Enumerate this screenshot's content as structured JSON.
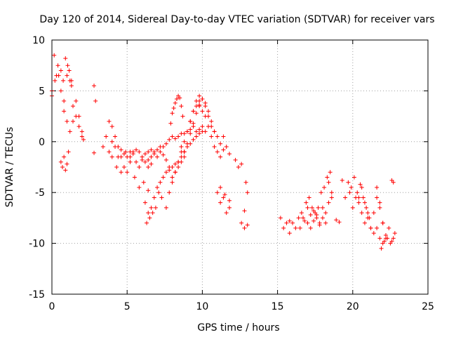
{
  "chart_data": {
    "type": "scatter",
    "title": "Day 120 of 2014, Sidereal Day-to-day VTEC variation (SDTVAR) for receiver vars",
    "xlabel": "GPS time / hours",
    "ylabel": "SDTVAR / TECUs",
    "xlim": [
      0,
      25
    ],
    "ylim": [
      -15,
      10
    ],
    "xticks": [
      0,
      5,
      10,
      15,
      20,
      25
    ],
    "yticks": [
      -15,
      -10,
      -5,
      0,
      5,
      10
    ],
    "grid": true,
    "marker": "+",
    "color": "#ff0000",
    "series": [
      {
        "name": "SDTVAR",
        "segments": [
          {
            "x": [
              0.0,
              0.15,
              0.3,
              0.45,
              0.6,
              0.75,
              0.9,
              1.05,
              1.2,
              1.3
            ],
            "y": [
              5.0,
              8.5,
              6.5,
              6.5,
              7.0,
              6.0,
              8.2,
              7.5,
              6.0,
              5.5
            ]
          },
          {
            "x": [
              0.0,
              0.2,
              0.4,
              0.6,
              0.8,
              1.0,
              1.15,
              1.3
            ],
            "y": [
              4.5,
              6.0,
              7.5,
              5.0,
              4.0,
              6.5,
              7.0,
              6.0
            ]
          },
          {
            "x": [
              0.6,
              0.7,
              0.8,
              0.9,
              1.0,
              1.1
            ],
            "y": [
              -2.0,
              -2.5,
              -1.5,
              -2.8,
              -2.2,
              -1.0
            ]
          },
          {
            "x": [
              0.8,
              1.0,
              1.2,
              1.4,
              1.6,
              1.8,
              2.0
            ],
            "y": [
              3.0,
              2.0,
              1.0,
              3.5,
              2.5,
              1.5,
              0.5
            ]
          },
          {
            "x": [
              1.4,
              1.6,
              1.8,
              2.0,
              2.1
            ],
            "y": [
              2.0,
              4.0,
              2.5,
              1.0,
              0.2
            ]
          },
          {
            "x": [
              2.8,
              2.9
            ],
            "y": [
              5.5,
              4.0
            ]
          },
          {
            "x": [
              2.8
            ],
            "y": [
              -1.1
            ]
          },
          {
            "x": [
              3.4,
              3.6,
              3.8,
              4.0,
              4.2,
              4.4,
              4.6,
              4.8,
              5.0,
              5.2,
              5.4,
              5.6,
              5.8,
              6.0,
              6.2,
              6.4,
              6.6,
              6.8,
              7.0,
              7.2,
              7.4,
              7.6,
              7.8,
              8.0,
              8.2,
              8.4,
              8.6,
              8.8,
              9.0,
              9.2,
              9.4,
              9.6,
              9.8,
              10.0,
              10.2
            ],
            "y": [
              -0.5,
              0.5,
              -1.0,
              0.0,
              -0.5,
              -1.5,
              -0.8,
              -1.2,
              -1.5,
              -1.0,
              -1.2,
              -0.8,
              -1.0,
              -1.5,
              -1.2,
              -1.8,
              -1.5,
              -1.0,
              -0.8,
              -0.5,
              -0.5,
              -0.2,
              0.2,
              0.5,
              0.3,
              0.5,
              0.8,
              0.8,
              1.0,
              1.2,
              1.5,
              1.0,
              1.2,
              1.5,
              1.0
            ]
          },
          {
            "x": [
              3.8,
              4.0,
              4.2,
              4.4,
              4.6,
              4.8,
              5.0,
              5.2,
              5.4,
              5.6,
              5.8,
              6.0,
              6.2,
              6.4,
              6.6
            ],
            "y": [
              2.0,
              1.5,
              0.5,
              -0.5,
              -1.5,
              -2.5,
              -3.0,
              -1.5,
              -1.0,
              -2.0,
              -2.5,
              -1.8,
              -2.0,
              -2.5,
              -2.2
            ]
          },
          {
            "x": [
              4.0,
              4.3,
              4.6,
              4.9,
              5.2,
              5.5,
              5.8,
              6.1,
              6.4
            ],
            "y": [
              -1.5,
              -2.5,
              -3.0,
              -1.0,
              -2.0,
              -3.5,
              -4.5,
              -4.0,
              -4.8
            ]
          },
          {
            "x": [
              6.4,
              6.6,
              6.8,
              7.0,
              7.2,
              7.4,
              7.6,
              7.8,
              8.0,
              8.2,
              8.4,
              8.6,
              8.8
            ],
            "y": [
              -1.0,
              -0.8,
              -1.2,
              -1.5,
              -1.0,
              -1.3,
              -1.8,
              -2.5,
              -3.5,
              -3.0,
              -2.5,
              -2.0,
              -1.5
            ]
          },
          {
            "x": [
              6.2,
              6.4,
              6.6,
              6.8,
              7.0,
              7.2,
              7.4,
              7.6,
              7.8,
              8.0,
              8.2,
              8.4,
              8.6,
              8.8,
              9.0,
              9.2,
              9.4,
              9.6,
              9.8,
              10.0
            ],
            "y": [
              -6.0,
              -7.0,
              -6.5,
              -5.5,
              -4.5,
              -4.0,
              -3.5,
              -3.0,
              -2.8,
              -2.5,
              -2.2,
              -2.0,
              -1.5,
              -1.0,
              -0.5,
              -0.2,
              0.2,
              0.5,
              0.8,
              1.0
            ]
          },
          {
            "x": [
              6.3,
              6.5,
              6.7,
              6.9,
              7.1,
              7.3
            ],
            "y": [
              -8.0,
              -7.5,
              -7.0,
              -6.5,
              -5.0,
              -5.5
            ]
          },
          {
            "x": [
              7.6,
              7.8,
              8.0,
              8.2,
              8.4,
              8.6,
              8.8,
              9.0,
              9.2,
              9.4,
              9.6,
              9.8
            ],
            "y": [
              -6.5,
              -5.0,
              -4.0,
              -3.0,
              -2.0,
              -1.0,
              0.0,
              1.0,
              2.0,
              3.0,
              3.5,
              4.0
            ]
          },
          {
            "x": [
              7.9,
              8.0,
              8.1,
              8.2,
              8.3,
              8.4,
              8.5,
              8.6,
              8.7
            ],
            "y": [
              1.8,
              2.8,
              3.3,
              3.8,
              4.2,
              4.5,
              4.3,
              3.5,
              2.5
            ]
          },
          {
            "x": [
              8.6,
              8.8,
              9.0,
              9.2,
              9.4,
              9.6,
              9.8,
              10.0,
              10.2,
              10.4,
              10.6,
              10.8
            ],
            "y": [
              -0.5,
              -1.0,
              -0.2,
              0.8,
              1.8,
              2.8,
              3.6,
              4.2,
              3.8,
              3.0,
              2.0,
              1.0
            ]
          },
          {
            "x": [
              9.2,
              9.4,
              9.6,
              9.8,
              10.0,
              10.2,
              10.4,
              10.6,
              10.8,
              11.0,
              11.2,
              11.4
            ],
            "y": [
              2.0,
              3.0,
              4.0,
              4.5,
              4.2,
              3.5,
              2.5,
              1.5,
              1.0,
              0.5,
              -0.2,
              -0.8
            ]
          },
          {
            "x": [
              9.8,
              10.0,
              10.2,
              10.4,
              10.6,
              10.8,
              11.0,
              11.2,
              11.4,
              11.6,
              11.8
            ],
            "y": [
              3.5,
              3.0,
              2.5,
              1.5,
              0.5,
              -0.5,
              -1.0,
              -1.5,
              0.5,
              -0.5,
              -1.2
            ]
          },
          {
            "x": [
              11.0,
              11.2,
              11.4,
              11.6,
              11.8
            ],
            "y": [
              -5.0,
              -6.0,
              -5.5,
              -7.0,
              -6.5
            ]
          },
          {
            "x": [
              11.2,
              11.5,
              11.8
            ],
            "y": [
              -4.5,
              -5.2,
              -5.8
            ]
          },
          {
            "x": [
              12.2,
              12.4,
              12.6
            ],
            "y": [
              -1.8,
              -2.5,
              -2.2
            ]
          },
          {
            "x": [
              12.6,
              12.8,
              13.0
            ],
            "y": [
              -8.0,
              -8.5,
              -8.2
            ]
          },
          {
            "x": [
              12.9,
              13.0
            ],
            "y": [
              -4.0,
              -5.0
            ]
          },
          {
            "x": [
              12.8
            ],
            "y": [
              -6.8
            ]
          },
          {
            "x": [
              15.2,
              15.4,
              15.6,
              15.8
            ],
            "y": [
              -7.5,
              -8.5,
              -8.0,
              -7.8
            ]
          },
          {
            "x": [
              15.8,
              16.0,
              16.2,
              16.4,
              16.6,
              16.8,
              17.0,
              17.2,
              17.4,
              17.6,
              17.8,
              18.0,
              18.2,
              18.4,
              18.6
            ],
            "y": [
              -9.0,
              -8.0,
              -8.5,
              -7.5,
              -7.0,
              -7.8,
              -6.5,
              -7.2,
              -6.8,
              -7.5,
              -8.0,
              -6.5,
              -7.0,
              -6.0,
              -5.5
            ]
          },
          {
            "x": [
              16.5,
              16.7,
              16.9,
              17.1,
              17.3,
              17.5,
              17.7,
              17.9,
              18.1,
              18.3,
              18.5
            ],
            "y": [
              -8.5,
              -7.5,
              -6.0,
              -5.5,
              -6.5,
              -7.0,
              -6.5,
              -5.0,
              -4.5,
              -3.5,
              -3.0
            ]
          },
          {
            "x": [
              17.0,
              17.2,
              17.4,
              17.6,
              17.8,
              18.0,
              18.2
            ],
            "y": [
              -8.0,
              -8.5,
              -7.8,
              -7.2,
              -8.2,
              -7.5,
              -8.0
            ]
          },
          {
            "x": [
              18.4,
              18.6
            ],
            "y": [
              -4.0,
              -5.0
            ]
          },
          {
            "x": [
              18.9,
              19.1
            ],
            "y": [
              -7.7,
              -7.9
            ]
          },
          {
            "x": [
              19.3,
              19.5,
              19.7,
              19.9,
              20.1,
              20.3,
              20.5,
              20.7,
              20.9,
              21.1
            ],
            "y": [
              -3.8,
              -5.5,
              -4.0,
              -4.5,
              -3.5,
              -5.0,
              -4.2,
              -5.5,
              -6.5,
              -7.5
            ]
          },
          {
            "x": [
              19.8,
              20.0,
              20.2,
              20.4,
              20.6,
              20.8,
              21.0,
              21.2,
              21.4,
              21.6,
              21.8,
              22.0,
              22.2
            ],
            "y": [
              -5.0,
              -6.5,
              -5.5,
              -6.0,
              -7.0,
              -8.0,
              -7.5,
              -8.5,
              -9.0,
              -8.5,
              -9.5,
              -10.0,
              -9.2
            ]
          },
          {
            "x": [
              20.4,
              20.6,
              20.8,
              21.0,
              21.2,
              21.4,
              21.6,
              21.8,
              22.0
            ],
            "y": [
              -5.5,
              -4.5,
              -6.0,
              -7.0,
              -8.5,
              -7.0,
              -5.5,
              -6.5,
              -8.0
            ]
          },
          {
            "x": [
              21.6,
              21.8,
              22.0,
              22.2,
              22.4,
              22.6,
              22.8
            ],
            "y": [
              -4.5,
              -6.0,
              -8.0,
              -9.5,
              -8.5,
              -9.8,
              -9.0
            ]
          },
          {
            "x": [
              21.9,
              22.1,
              22.3,
              22.5,
              22.7
            ],
            "y": [
              -10.5,
              -9.8,
              -9.5,
              -10.0,
              -9.5
            ]
          },
          {
            "x": [
              22.6,
              22.7
            ],
            "y": [
              -3.8,
              -4.0
            ]
          }
        ]
      }
    ]
  }
}
